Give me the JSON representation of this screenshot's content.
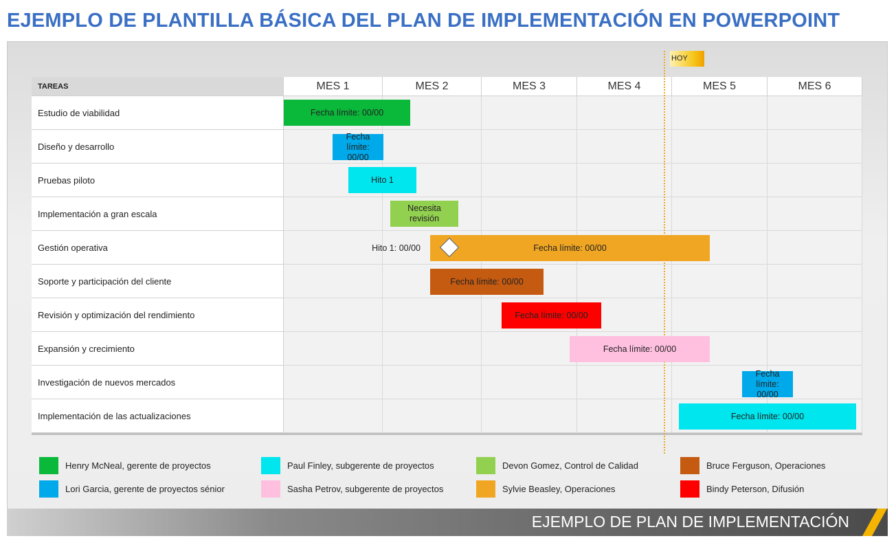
{
  "title": "EJEMPLO DE PLANTILLA BÁSICA DEL PLAN DE IMPLEMENTACIÓN EN POWERPOINT",
  "today_label": "HOY",
  "header": {
    "task_column": "TAREAS",
    "months": [
      "MES 1",
      "MES 2",
      "MES 3",
      "MES 4",
      "MES 5",
      "MES 6"
    ]
  },
  "milestone_label": "Hito 1: 00/00",
  "tasks": [
    {
      "name": "Estudio de viabilidad",
      "bar_label": "Fecha límite: 00/00",
      "color": "#0ab83a"
    },
    {
      "name": "Diseño y desarrollo",
      "bar_label": "Fecha límite: 00/00",
      "color": "#00a9ea"
    },
    {
      "name": "Pruebas piloto",
      "bar_label": "Hito 1",
      "color": "#00e6ee"
    },
    {
      "name": "Implementación a gran escala",
      "bar_label": "Necesita revisión",
      "color": "#92d050"
    },
    {
      "name": "Gestión operativa",
      "bar_label": "Fecha límite: 00/00",
      "color": "#f0a623"
    },
    {
      "name": "Soporte y participación del cliente",
      "bar_label": "Fecha límite: 00/00",
      "color": "#c55a11"
    },
    {
      "name": "Revisión y optimización del rendimiento",
      "bar_label": "Fecha límite: 00/00",
      "color": "#ff0000"
    },
    {
      "name": "Expansión y crecimiento",
      "bar_label": "Fecha límite: 00/00",
      "color": "#ffc0e0"
    },
    {
      "name": "Investigación de nuevos mercados",
      "bar_label": "Fecha límite: 00/00",
      "color": "#00a9ea"
    },
    {
      "name": "Implementación de las actualizaciones",
      "bar_label": "Fecha límite: 00/00",
      "color": "#00e6ee"
    }
  ],
  "legend": [
    {
      "label": "Henry McNeal, gerente de proyectos",
      "color": "#0ab83a"
    },
    {
      "label": "Lori Garcia, gerente de proyectos sénior",
      "color": "#00a9ea"
    },
    {
      "label": "Paul Finley, subgerente de proyectos",
      "color": "#00e6ee"
    },
    {
      "label": "Sasha Petrov, subgerente de proyectos",
      "color": "#ffc0e0"
    },
    {
      "label": "Devon Gomez, Control de Calidad",
      "color": "#92d050"
    },
    {
      "label": "Sylvie Beasley, Operaciones",
      "color": "#f0a623"
    },
    {
      "label": "Bruce Ferguson, Operaciones",
      "color": "#c55a11"
    },
    {
      "label": "Bindy Peterson, Difusión",
      "color": "#ff0000"
    }
  ],
  "footer": "EJEMPLO DE PLAN DE IMPLEMENTACIÓN"
}
